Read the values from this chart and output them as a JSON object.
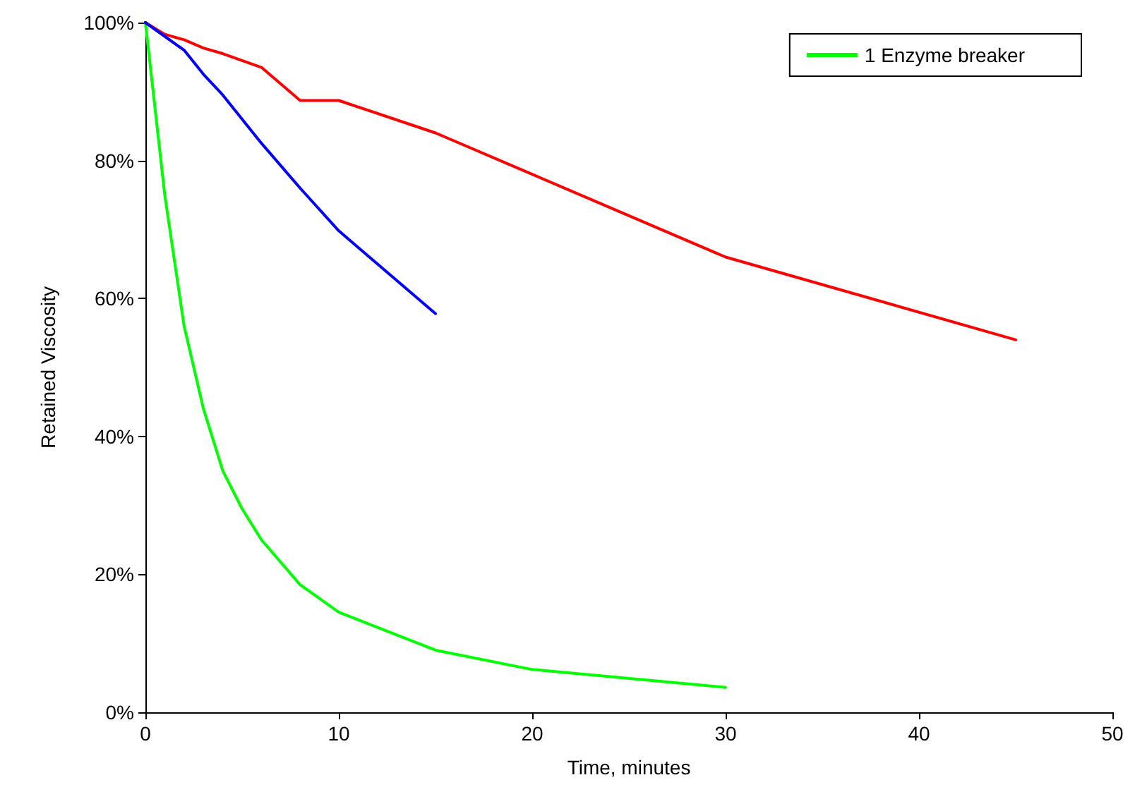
{
  "chart_data": {
    "type": "line",
    "xlabel": "Time, minutes",
    "ylabel": "Retained Viscosity",
    "xlim": [
      0,
      50
    ],
    "xticks": [
      0,
      10,
      20,
      30,
      40,
      50
    ],
    "ylim": [
      0,
      100
    ],
    "yticks": [
      {
        "value": 0,
        "label": "0%"
      },
      {
        "value": 20,
        "label": "20%"
      },
      {
        "value": 40,
        "label": "40%"
      },
      {
        "value": 60,
        "label": "60%"
      },
      {
        "value": 80,
        "label": "80%"
      },
      {
        "value": 100,
        "label": "100%"
      }
    ],
    "grid": false,
    "legend": "top right",
    "marker": "none",
    "line_style": "solid",
    "series": [
      {
        "name": "1 Enzyme breaker",
        "color": "#00ff00",
        "x": [
          0,
          1,
          2,
          3,
          4,
          5,
          6,
          8,
          10,
          15,
          20,
          30
        ],
        "values": [
          100,
          75,
          56,
          44,
          35,
          29.5,
          25,
          18.5,
          14.5,
          9,
          6.2,
          3.6
        ]
      },
      {
        "color": "#ff0000",
        "x": [
          0,
          1,
          2,
          3,
          4,
          6,
          8,
          10,
          15,
          20,
          30,
          45
        ],
        "values": [
          100,
          98.3,
          97.5,
          96.3,
          95.5,
          93.5,
          88.7,
          88.7,
          84,
          78,
          66,
          54
        ]
      },
      {
        "color": "#0000ff",
        "x": [
          0,
          2,
          3,
          4,
          6,
          8,
          10,
          15
        ],
        "values": [
          100,
          96,
          92.5,
          89.5,
          82.5,
          76,
          69.8,
          57.8
        ]
      }
    ]
  }
}
